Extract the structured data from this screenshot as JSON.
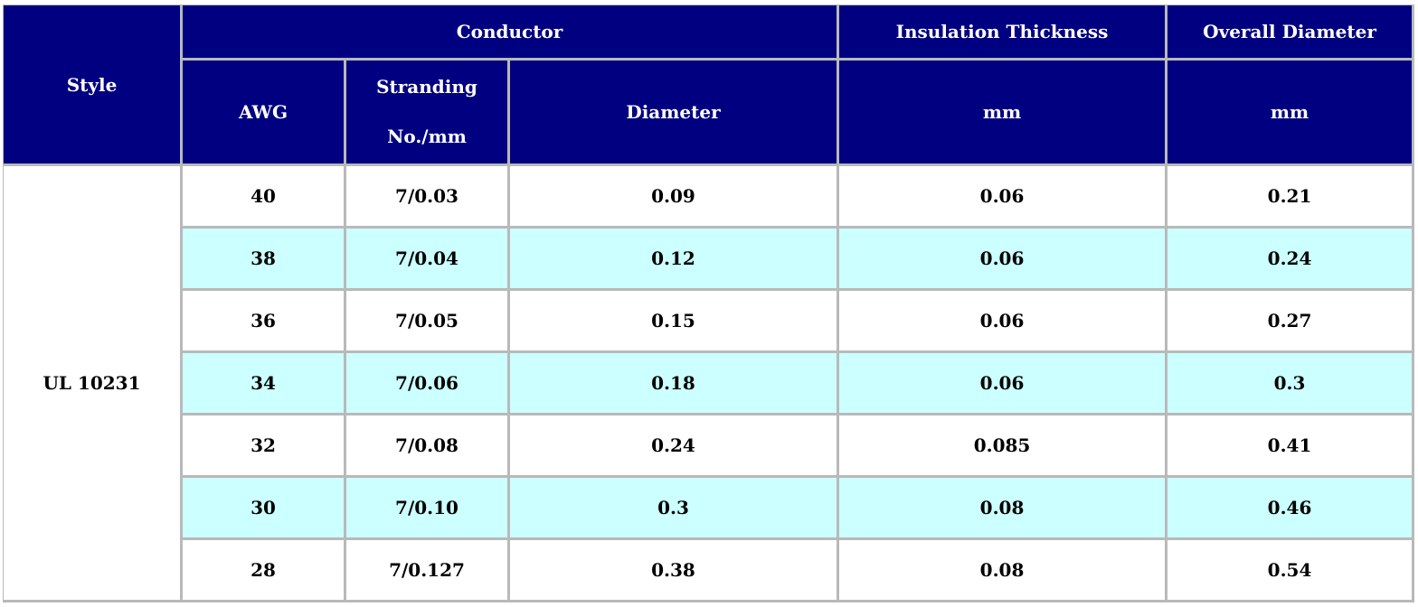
{
  "header": {
    "style": "Style",
    "conductor": "Conductor",
    "insulation_thickness": "Insulation Thickness",
    "overall_diameter": "Overall Diameter",
    "awg": "AWG",
    "stranding_line1": "Stranding",
    "stranding_line2": "No./mm",
    "diameter": "Diameter",
    "insulation_unit": "mm",
    "overall_unit": "mm"
  },
  "style_value": "UL 10231",
  "rows": [
    {
      "awg": "40",
      "stranding": "7/0.03",
      "diameter": "0.09",
      "insulation": "0.06",
      "overall": "0.21"
    },
    {
      "awg": "38",
      "stranding": "7/0.04",
      "diameter": "0.12",
      "insulation": "0.06",
      "overall": "0.24"
    },
    {
      "awg": "36",
      "stranding": "7/0.05",
      "diameter": "0.15",
      "insulation": "0.06",
      "overall": "0.27"
    },
    {
      "awg": "34",
      "stranding": "7/0.06",
      "diameter": "0.18",
      "insulation": "0.06",
      "overall": "0.3"
    },
    {
      "awg": "32",
      "stranding": "7/0.08",
      "diameter": "0.24",
      "insulation": "0.085",
      "overall": "0.41"
    },
    {
      "awg": "30",
      "stranding": "7/0.10",
      "diameter": "0.3",
      "insulation": "0.08",
      "overall": "0.46"
    },
    {
      "awg": "28",
      "stranding": "7/0.127",
      "diameter": "0.38",
      "insulation": "0.08",
      "overall": "0.54"
    }
  ],
  "colors": {
    "header_bg": "#000080",
    "header_text": "#ffffff",
    "alt_row_bg": "#ccffff",
    "grid": "#b9b9b9"
  }
}
